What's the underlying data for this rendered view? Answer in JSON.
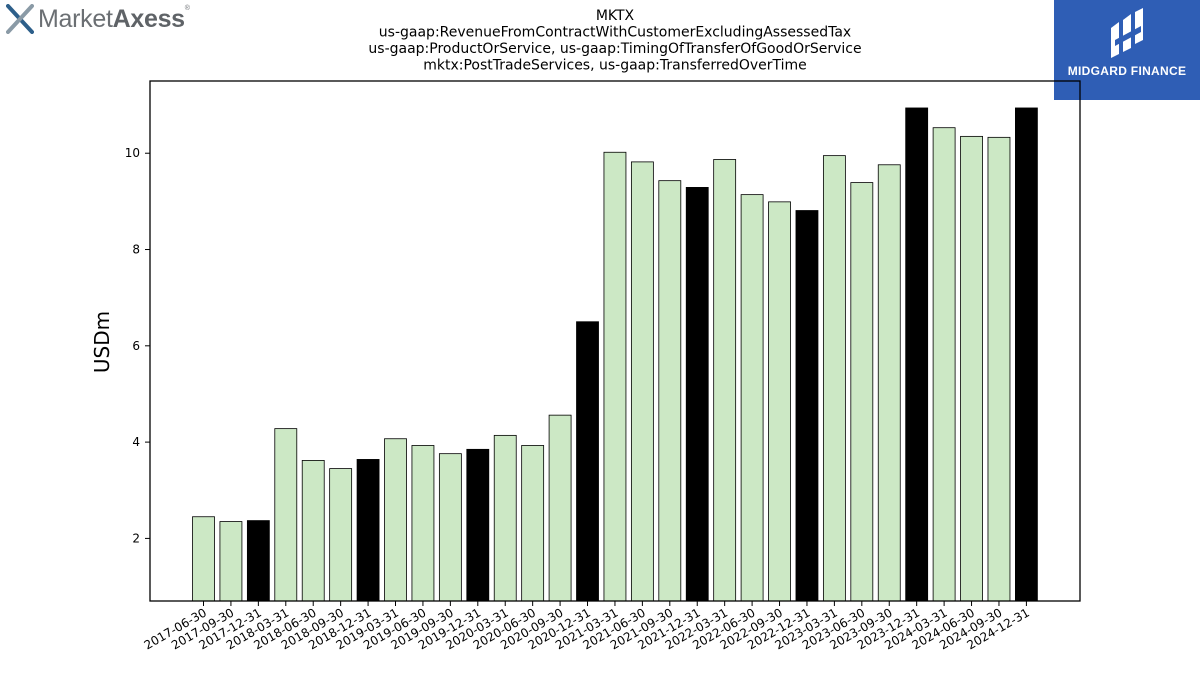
{
  "brand": {
    "name_light": "Market",
    "name_bold": "Axess",
    "mark": "®"
  },
  "sponsor": {
    "name": "MIDGARD FINANCE"
  },
  "chart_data": {
    "type": "bar",
    "title": [
      "MKTX",
      "us-gaap:RevenueFromContractWithCustomerExcludingAssessedTax",
      "us-gaap:ProductOrService, us-gaap:TimingOfTransferOfGoodOrService",
      "mktx:PostTradeServices, us-gaap:TransferredOverTime"
    ],
    "xlabel": "",
    "ylabel": "USDm",
    "ylim": [
      0.7,
      11.5
    ],
    "yticks": [
      2,
      4,
      6,
      8,
      10
    ],
    "grid": false,
    "categories": [
      "2017-06-30",
      "2017-09-30",
      "2017-12-31",
      "2018-03-31",
      "2018-06-30",
      "2018-09-30",
      "2018-12-31",
      "2019-03-31",
      "2019-06-30",
      "2019-09-30",
      "2019-12-31",
      "2020-03-31",
      "2020-06-30",
      "2020-09-30",
      "2020-12-31",
      "2021-03-31",
      "2021-06-30",
      "2021-09-30",
      "2021-12-31",
      "2022-03-31",
      "2022-06-30",
      "2022-09-30",
      "2022-12-31",
      "2023-03-31",
      "2023-06-30",
      "2023-09-30",
      "2023-12-31",
      "2024-03-31",
      "2024-06-30",
      "2024-09-30",
      "2024-12-31"
    ],
    "values": [
      2.45,
      2.35,
      2.37,
      4.28,
      3.62,
      3.45,
      3.64,
      4.07,
      3.93,
      3.76,
      3.85,
      4.14,
      3.93,
      4.56,
      6.5,
      10.02,
      9.82,
      9.43,
      9.29,
      9.87,
      9.14,
      8.99,
      8.81,
      9.95,
      9.39,
      9.76,
      10.94,
      10.53,
      10.35,
      10.33,
      10.94
    ],
    "colors": {
      "quarter": "#cce8c5",
      "year_end": "#000000",
      "edge": "#000000"
    },
    "year_end_categories": [
      "2017-12-31",
      "2018-12-31",
      "2019-12-31",
      "2020-12-31",
      "2021-12-31",
      "2022-12-31",
      "2023-12-31",
      "2024-12-31"
    ]
  }
}
